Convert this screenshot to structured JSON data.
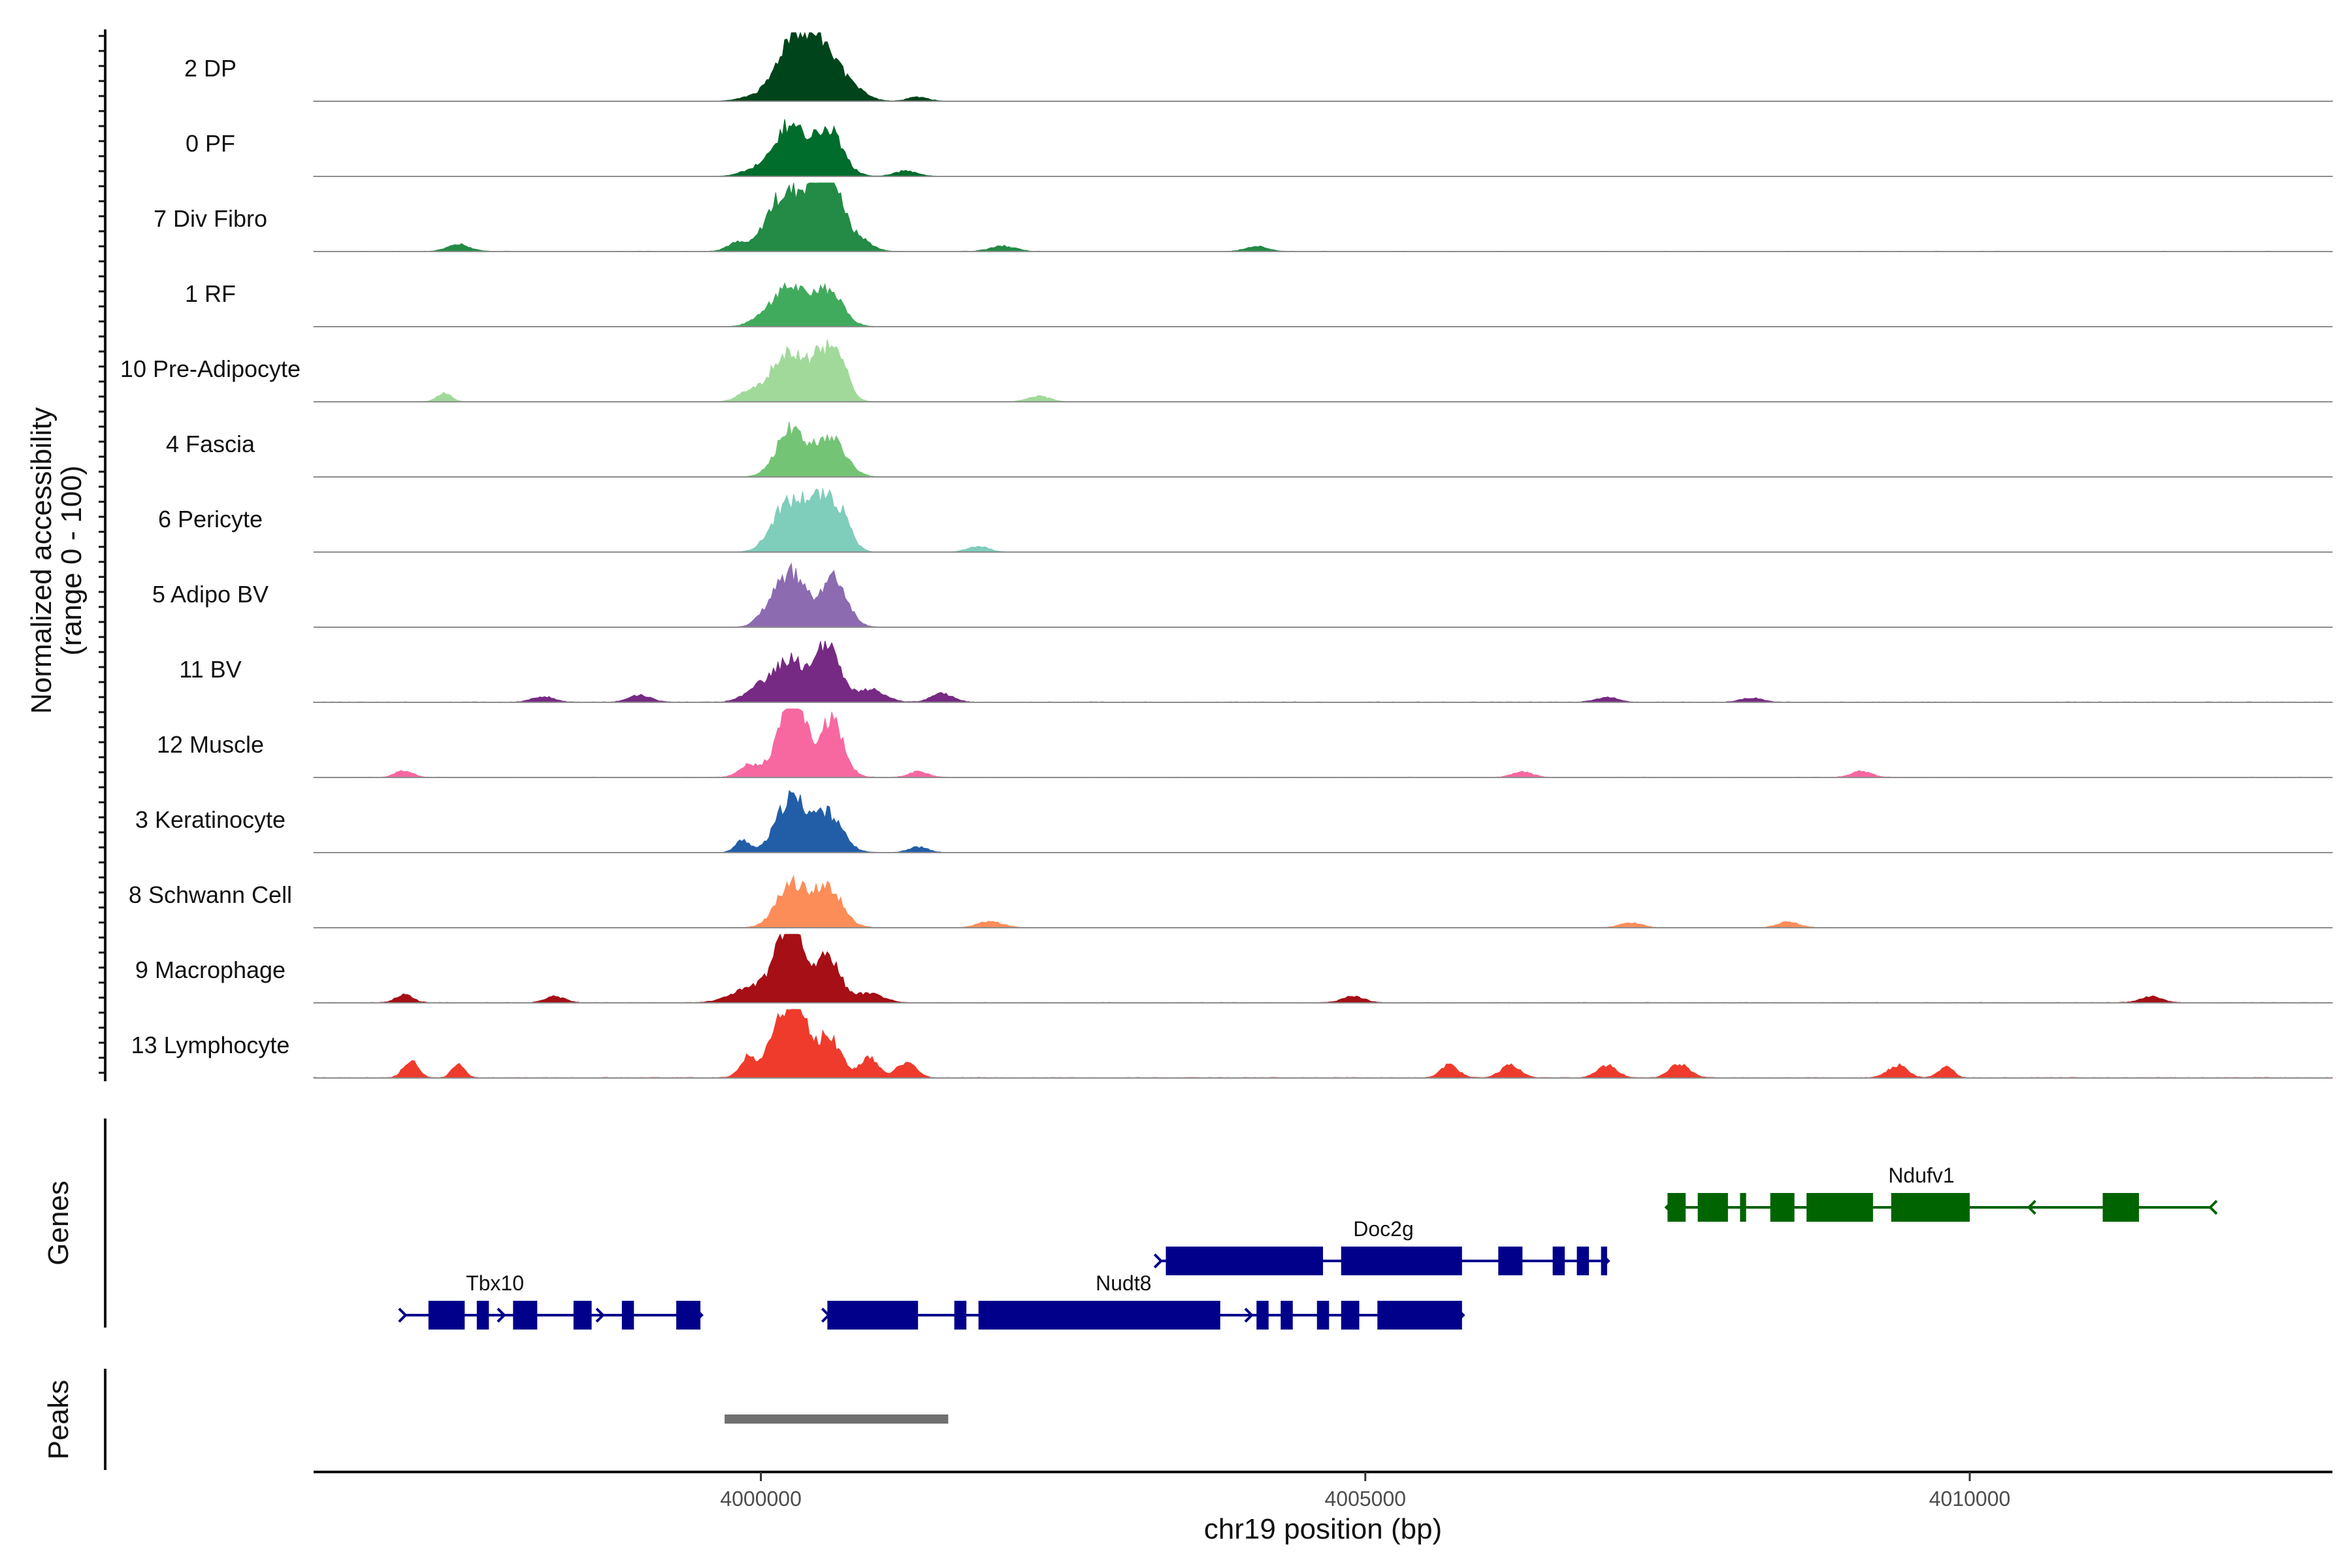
{
  "chart_data": {
    "type": "area",
    "title": "",
    "xlabel": "chr19 position (bp)",
    "ylabel": "Normalized accessibility",
    "ylabel_sub": "(range 0 - 100)",
    "xlim": [
      3996300,
      4013000
    ],
    "ylim": [
      0,
      100
    ],
    "x_ticks": [
      4000000,
      4005000,
      4010000
    ],
    "x_tick_labels": [
      "4000000",
      "4005000",
      "4010000"
    ],
    "panel_labels": {
      "genes": "Genes",
      "peaks": "Peaks"
    },
    "tracks": [
      {
        "name": "2 DP",
        "color": "#00441b",
        "noise": 0.08,
        "peaks": [
          [
            4000000,
            10,
            130
          ],
          [
            4000230,
            70,
            110
          ],
          [
            4000400,
            60,
            120
          ],
          [
            4000560,
            55,
            120
          ],
          [
            4000800,
            12,
            100
          ],
          [
            4001300,
            6,
            80
          ]
        ]
      },
      {
        "name": "0 PF",
        "color": "#006d2c",
        "noise": 0.07,
        "peaks": [
          [
            3999950,
            10,
            110
          ],
          [
            4000230,
            72,
            120
          ],
          [
            4000550,
            68,
            120
          ],
          [
            4001200,
            8,
            90
          ]
        ]
      },
      {
        "name": "7 Div Fibro",
        "color": "#238b45",
        "noise": 0.1,
        "peaks": [
          [
            3999800,
            12,
            80
          ],
          [
            4000150,
            70,
            120
          ],
          [
            4000400,
            80,
            120
          ],
          [
            4000580,
            100,
            90
          ],
          [
            4000800,
            20,
            100
          ],
          [
            3997500,
            10,
            90
          ],
          [
            4002000,
            8,
            100
          ],
          [
            4004100,
            7,
            90
          ]
        ]
      },
      {
        "name": "1 RF",
        "color": "#41ab5d",
        "noise": 0.06,
        "peaks": [
          [
            4000230,
            60,
            120
          ],
          [
            4000550,
            52,
            120
          ],
          [
            4000000,
            10,
            100
          ]
        ]
      },
      {
        "name": "10 Pre-Adipocyte",
        "color": "#a1d99b",
        "noise": 0.07,
        "peaks": [
          [
            3997380,
            12,
            60
          ],
          [
            3999900,
            14,
            90
          ],
          [
            4000200,
            70,
            120
          ],
          [
            4000500,
            65,
            120
          ],
          [
            4000650,
            40,
            80
          ],
          [
            4002300,
            8,
            90
          ]
        ]
      },
      {
        "name": "4 Fascia",
        "color": "#74c476",
        "noise": 0.05,
        "peaks": [
          [
            4000250,
            68,
            120
          ],
          [
            4000580,
            55,
            120
          ]
        ]
      },
      {
        "name": "6 Pericyte",
        "color": "#7fcdbb",
        "noise": 0.05,
        "peaks": [
          [
            4000200,
            62,
            120
          ],
          [
            4000450,
            72,
            120
          ],
          [
            4000650,
            50,
            90
          ],
          [
            4001800,
            8,
            90
          ]
        ]
      },
      {
        "name": "5 Adipo BV",
        "color": "#8c6bb1",
        "noise": 0.05,
        "peaks": [
          [
            4000250,
            78,
            120
          ],
          [
            4000600,
            70,
            110
          ],
          [
            4000050,
            14,
            90
          ]
        ]
      },
      {
        "name": "11 BV",
        "color": "#762a83",
        "noise": 0.12,
        "peaks": [
          [
            4000000,
            22,
            120
          ],
          [
            4000250,
            60,
            120
          ],
          [
            4000550,
            80,
            100
          ],
          [
            4000900,
            18,
            120
          ],
          [
            4001500,
            12,
            90
          ],
          [
            3998200,
            8,
            90
          ],
          [
            3999000,
            10,
            90
          ],
          [
            4007000,
            7,
            90
          ],
          [
            4008200,
            6,
            90
          ]
        ]
      },
      {
        "name": "12 Muscle",
        "color": "#f768a1",
        "noise": 0.1,
        "peaks": [
          [
            3999900,
            18,
            80
          ],
          [
            4000200,
            55,
            110
          ],
          [
            4000300,
            70,
            90
          ],
          [
            4000580,
            82,
            100
          ],
          [
            4001300,
            8,
            80
          ],
          [
            3997050,
            10,
            70
          ],
          [
            4006300,
            8,
            80
          ],
          [
            4009100,
            9,
            80
          ]
        ]
      },
      {
        "name": "3 Keratinocyte",
        "color": "#225ea8",
        "noise": 0.05,
        "peaks": [
          [
            3999850,
            18,
            60
          ],
          [
            4000250,
            78,
            120
          ],
          [
            4000550,
            55,
            120
          ],
          [
            4001300,
            8,
            80
          ]
        ]
      },
      {
        "name": "8 Schwann Cell",
        "color": "#fc8d59",
        "noise": 0.07,
        "peaks": [
          [
            4000250,
            62,
            120
          ],
          [
            4000550,
            58,
            120
          ],
          [
            4001900,
            9,
            100
          ],
          [
            4007200,
            7,
            90
          ],
          [
            4008500,
            8,
            90
          ]
        ]
      },
      {
        "name": "9 Macrophage",
        "color": "#a50f15",
        "noise": 0.11,
        "peaks": [
          [
            3999900,
            20,
            150
          ],
          [
            4000150,
            45,
            100
          ],
          [
            4000270,
            90,
            90
          ],
          [
            4000550,
            70,
            100
          ],
          [
            4000900,
            14,
            110
          ],
          [
            3997050,
            12,
            70
          ],
          [
            3998300,
            9,
            80
          ],
          [
            4004900,
            9,
            90
          ],
          [
            4011500,
            9,
            90
          ]
        ]
      },
      {
        "name": "13 Lymphocyte",
        "color": "#ef3b2c",
        "noise": 0.15,
        "peaks": [
          [
            3999900,
            30,
            70
          ],
          [
            4000150,
            70,
            90
          ],
          [
            4000300,
            100,
            80
          ],
          [
            4000550,
            60,
            110
          ],
          [
            4000900,
            30,
            70
          ],
          [
            3997100,
            25,
            60
          ],
          [
            3997500,
            22,
            50
          ],
          [
            4001200,
            22,
            80
          ],
          [
            4005700,
            20,
            70
          ],
          [
            4006200,
            18,
            80
          ],
          [
            4007000,
            18,
            80
          ],
          [
            4007600,
            20,
            80
          ],
          [
            4009400,
            18,
            80
          ],
          [
            4009800,
            16,
            60
          ]
        ]
      }
    ],
    "genes": [
      {
        "name": "Tbx10",
        "strand": "+",
        "color": "#00008b",
        "row": 0,
        "start": 3997050,
        "end": 3999500,
        "label_x": 3997800,
        "exons": [
          [
            3997250,
            3997550
          ],
          [
            3997650,
            3997750
          ],
          [
            3997950,
            3998150
          ],
          [
            3998450,
            3998600
          ],
          [
            3998850,
            3998950
          ],
          [
            3999300,
            3999500
          ]
        ]
      },
      {
        "name": "Nudt8",
        "strand": "+",
        "color": "#00008b",
        "row": 0,
        "start": 4000550,
        "end": 4005800,
        "label_x": 4003000,
        "exons": [
          [
            4000550,
            4001300
          ],
          [
            4001600,
            4001700
          ],
          [
            4001800,
            4003800
          ],
          [
            4004100,
            4004200
          ],
          [
            4004300,
            4004400
          ],
          [
            4004600,
            4004700
          ],
          [
            4004800,
            4004950
          ],
          [
            4005100,
            4005800
          ]
        ]
      },
      {
        "name": "Doc2g",
        "strand": "+",
        "color": "#00008b",
        "row": 1,
        "start": 4003300,
        "end": 4007000,
        "label_x": 4005150,
        "exons": [
          [
            4003350,
            4004650
          ],
          [
            4004800,
            4005800
          ],
          [
            4006100,
            4006300
          ],
          [
            4006550,
            4006650
          ],
          [
            4006750,
            4006850
          ],
          [
            4006950,
            4007000
          ]
        ]
      },
      {
        "name": "Ndufv1",
        "strand": "-",
        "color": "#006400",
        "row": 2,
        "start": 4007500,
        "end": 4012000,
        "label_x": 4009600,
        "exons": [
          [
            4007500,
            4007650
          ],
          [
            4007750,
            4008000
          ],
          [
            4008100,
            4008150
          ],
          [
            4008350,
            4008550
          ],
          [
            4008650,
            4009200
          ],
          [
            4009350,
            4010000
          ],
          [
            4011100,
            4011400
          ]
        ]
      }
    ],
    "peaks_region": [
      [
        3999700,
        4001550
      ]
    ]
  }
}
